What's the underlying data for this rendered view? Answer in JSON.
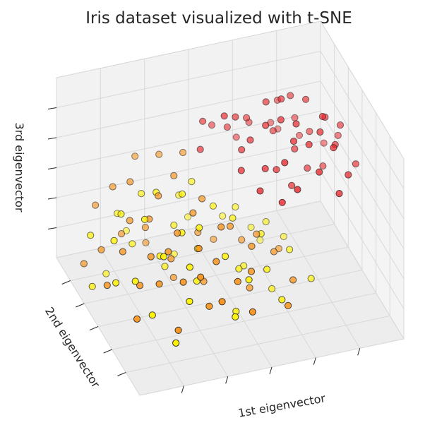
{
  "chart_data": {
    "type": "scatter",
    "title": "Iris dataset visualized with t-SNE",
    "xlabel": "1st eigenvector",
    "ylabel": "2nd eigenvector",
    "zlabel": "3rd eigenvector",
    "projection": "3d",
    "grid": true,
    "colormap": "autumn",
    "point_edge_color": "#1a1a1a",
    "pane_color": "#f2f2f2",
    "grid_color": "#d9d9d9",
    "xlim": [
      -1,
      1
    ],
    "ylim": [
      -1,
      1
    ],
    "zlim": [
      -1,
      1
    ],
    "series": [
      {
        "color": "#e8262b",
        "points": [
          [
            0.62,
            0.15,
            0.9
          ],
          [
            0.55,
            0.3,
            0.85
          ],
          [
            0.45,
            0.2,
            0.92
          ],
          [
            0.35,
            0.25,
            0.88
          ],
          [
            0.7,
            0.0,
            0.8
          ],
          [
            0.75,
            0.1,
            0.7
          ],
          [
            0.5,
            0.0,
            0.78
          ],
          [
            0.4,
            0.05,
            0.82
          ],
          [
            0.3,
            0.1,
            0.75
          ],
          [
            0.65,
            -0.1,
            0.72
          ],
          [
            0.55,
            -0.15,
            0.65
          ],
          [
            0.45,
            -0.1,
            0.68
          ],
          [
            0.72,
            -0.2,
            0.6
          ],
          [
            0.6,
            0.35,
            0.55
          ],
          [
            0.25,
            0.4,
            0.62
          ],
          [
            0.15,
            0.35,
            0.7
          ],
          [
            0.05,
            0.3,
            0.78
          ],
          [
            0.85,
            0.05,
            0.62
          ],
          [
            0.5,
            0.45,
            0.7
          ],
          [
            0.35,
            -0.2,
            0.55
          ],
          [
            0.2,
            0.15,
            0.58
          ],
          [
            0.68,
            0.25,
            0.45
          ],
          [
            0.42,
            0.3,
            0.5
          ],
          [
            0.78,
            -0.05,
            0.5
          ],
          [
            0.3,
            0.5,
            0.48
          ],
          [
            0.58,
            -0.3,
            0.45
          ],
          [
            0.12,
            0.45,
            0.52
          ],
          [
            -0.05,
            0.5,
            0.6
          ],
          [
            0.88,
            0.2,
            0.38
          ],
          [
            0.52,
            0.1,
            0.42
          ],
          [
            0.25,
            -0.05,
            0.4
          ],
          [
            0.65,
            0.4,
            0.3
          ],
          [
            0.4,
            -0.35,
            0.35
          ],
          [
            0.15,
            0.2,
            0.45
          ],
          [
            0.8,
            -0.3,
            0.35
          ],
          [
            0.48,
            0.55,
            0.38
          ],
          [
            0.05,
            0.6,
            0.45
          ],
          [
            0.35,
            0.0,
            0.32
          ],
          [
            0.7,
            -0.4,
            0.25
          ],
          [
            0.22,
            0.55,
            0.3
          ],
          [
            0.92,
            -0.1,
            0.28
          ],
          [
            0.6,
            0.05,
            0.22
          ],
          [
            0.1,
            0.05,
            0.35
          ],
          [
            0.55,
            0.6,
            0.25
          ],
          [
            0.3,
            -0.3,
            0.2
          ],
          [
            0.82,
            0.35,
            0.2
          ],
          [
            -0.1,
            0.4,
            0.38
          ],
          [
            0.45,
            -0.05,
            0.15
          ],
          [
            0.75,
            0.15,
            0.12
          ],
          [
            0.18,
            -0.15,
            0.25
          ]
        ]
      },
      {
        "color": "#f7941d",
        "points": [
          [
            -0.2,
            0.5,
            0.3
          ],
          [
            -0.35,
            0.6,
            0.25
          ],
          [
            -0.5,
            0.7,
            0.2
          ],
          [
            -0.3,
            0.4,
            0.15
          ],
          [
            -0.6,
            0.5,
            0.1
          ],
          [
            -0.45,
            0.3,
            0.05
          ],
          [
            -0.15,
            0.2,
            0.0
          ],
          [
            -0.7,
            0.6,
            0.0
          ],
          [
            -0.25,
            0.1,
            -0.05
          ],
          [
            -0.55,
            0.2,
            -0.1
          ],
          [
            -0.4,
            0.0,
            -0.15
          ],
          [
            -0.1,
            -0.1,
            -0.1
          ],
          [
            -0.65,
            0.35,
            -0.2
          ],
          [
            -0.3,
            -0.2,
            -0.2
          ],
          [
            -0.8,
            0.7,
            -0.25
          ],
          [
            -0.5,
            -0.1,
            -0.25
          ],
          [
            -0.2,
            -0.3,
            -0.3
          ],
          [
            0.0,
            0.0,
            -0.2
          ],
          [
            -0.6,
            0.0,
            -0.35
          ],
          [
            -0.35,
            -0.4,
            -0.35
          ],
          [
            0.1,
            -0.2,
            -0.3
          ],
          [
            -0.75,
            0.2,
            -0.4
          ],
          [
            -0.45,
            -0.3,
            -0.45
          ],
          [
            -0.1,
            -0.5,
            -0.4
          ],
          [
            0.2,
            0.0,
            -0.35
          ],
          [
            -0.85,
            0.4,
            -0.5
          ],
          [
            -0.6,
            -0.2,
            -0.5
          ],
          [
            -0.25,
            -0.6,
            -0.5
          ],
          [
            0.05,
            -0.35,
            -0.45
          ],
          [
            -0.4,
            0.15,
            -0.55
          ],
          [
            -0.7,
            -0.05,
            -0.6
          ],
          [
            -0.15,
            0.3,
            -0.45
          ],
          [
            0.3,
            -0.1,
            -0.5
          ],
          [
            -0.5,
            0.45,
            -0.4
          ],
          [
            -0.9,
            0.1,
            -0.65
          ],
          [
            -0.3,
            -0.45,
            -0.65
          ],
          [
            0.15,
            0.2,
            -0.55
          ],
          [
            -0.65,
            0.55,
            -0.5
          ],
          [
            -0.05,
            -0.7,
            -0.6
          ],
          [
            0.35,
            -0.4,
            -0.6
          ],
          [
            -0.8,
            -0.3,
            -0.75
          ],
          [
            -0.45,
            0.6,
            -0.7
          ],
          [
            0.0,
            0.4,
            -0.65
          ],
          [
            -0.2,
            0.0,
            -0.75
          ],
          [
            0.25,
            -0.6,
            -0.7
          ],
          [
            -0.55,
            -0.5,
            -0.8
          ],
          [
            -0.95,
            0.5,
            -0.7
          ],
          [
            0.4,
            0.1,
            -0.65
          ],
          [
            -0.35,
            0.25,
            -0.85
          ],
          [
            0.1,
            -0.15,
            -0.8
          ]
        ]
      },
      {
        "color": "#fff200",
        "points": [
          [
            -0.3,
            0.2,
            0.1
          ],
          [
            -0.45,
            0.35,
            0.05
          ],
          [
            -0.15,
            0.45,
            0.0
          ],
          [
            -0.6,
            0.15,
            -0.05
          ],
          [
            -0.25,
            -0.05,
            -0.1
          ],
          [
            -0.5,
            0.55,
            -0.1
          ],
          [
            -0.05,
            0.25,
            -0.15
          ],
          [
            -0.7,
            0.4,
            -0.15
          ],
          [
            -0.35,
            0.05,
            -0.2
          ],
          [
            0.05,
            0.1,
            -0.2
          ],
          [
            -0.55,
            -0.15,
            -0.25
          ],
          [
            -0.2,
            0.6,
            -0.25
          ],
          [
            -0.8,
            0.25,
            -0.3
          ],
          [
            0.15,
            0.35,
            -0.3
          ],
          [
            -0.4,
            -0.3,
            -0.3
          ],
          [
            -0.1,
            -0.2,
            -0.35
          ],
          [
            -0.65,
            0.65,
            -0.35
          ],
          [
            0.25,
            0.05,
            -0.4
          ],
          [
            -0.3,
            0.4,
            -0.4
          ],
          [
            -0.9,
            0.5,
            -0.4
          ],
          [
            0.0,
            -0.45,
            -0.45
          ],
          [
            -0.5,
            0.1,
            -0.45
          ],
          [
            0.35,
            0.25,
            -0.45
          ],
          [
            -0.75,
            -0.1,
            -0.5
          ],
          [
            -0.2,
            0.15,
            -0.5
          ],
          [
            0.1,
            0.5,
            -0.5
          ],
          [
            -0.45,
            -0.45,
            -0.55
          ],
          [
            0.2,
            -0.25,
            -0.55
          ],
          [
            -0.6,
            0.45,
            -0.55
          ],
          [
            -0.1,
            0.7,
            -0.6
          ],
          [
            0.45,
            0.0,
            -0.6
          ],
          [
            -0.85,
            0.05,
            -0.6
          ],
          [
            -0.3,
            -0.15,
            -0.6
          ],
          [
            0.3,
            0.45,
            -0.65
          ],
          [
            -0.55,
            0.75,
            -0.65
          ],
          [
            0.05,
            -0.05,
            -0.65
          ],
          [
            -0.7,
            -0.35,
            -0.7
          ],
          [
            0.5,
            0.3,
            -0.7
          ],
          [
            -0.15,
            -0.6,
            -0.7
          ],
          [
            -0.4,
            0.3,
            -0.75
          ],
          [
            0.25,
            -0.45,
            -0.75
          ],
          [
            -0.95,
            0.3,
            -0.8
          ],
          [
            0.15,
            0.15,
            -0.8
          ],
          [
            -0.6,
            -0.6,
            -0.85
          ],
          [
            0.55,
            -0.2,
            -0.8
          ],
          [
            -0.25,
            0.55,
            -0.85
          ],
          [
            0.4,
            0.55,
            -0.9
          ],
          [
            -0.05,
            -0.3,
            -0.9
          ],
          [
            -0.75,
            0.6,
            -0.95
          ],
          [
            0.3,
            -0.05,
            -0.95
          ]
        ]
      }
    ]
  }
}
